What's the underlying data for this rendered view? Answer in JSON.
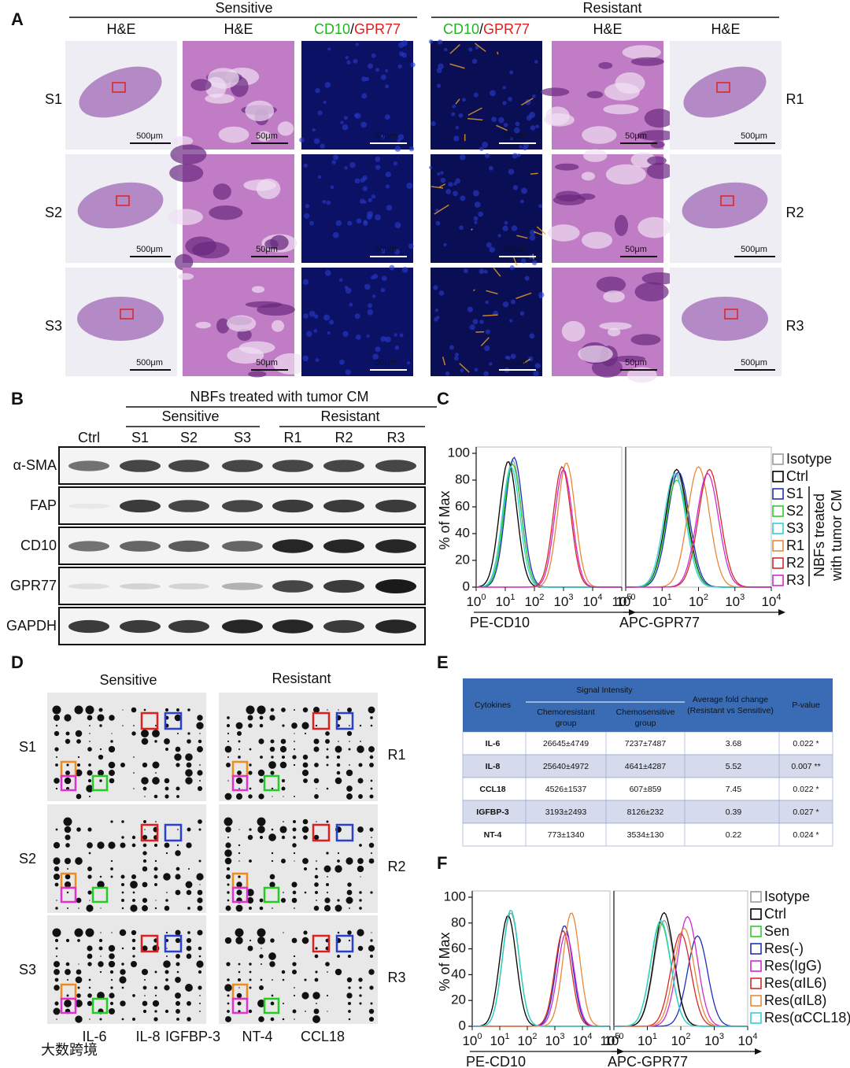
{
  "panel_a": {
    "letter": "A",
    "groups": [
      "Sensitive",
      "Resistant"
    ],
    "columns": [
      {
        "label": "H&E"
      },
      {
        "label": "H&E"
      },
      {
        "parts": [
          {
            "text": "CD10",
            "color": "#1fb51f"
          },
          {
            "text": "/",
            "color": "#111111"
          },
          {
            "text": "GPR77",
            "color": "#e01e1e"
          }
        ]
      },
      {
        "parts": [
          {
            "text": "CD10",
            "color": "#1fb51f"
          },
          {
            "text": "/",
            "color": "#111111"
          },
          {
            "text": "GPR77",
            "color": "#e01e1e"
          }
        ]
      },
      {
        "label": "H&E"
      },
      {
        "label": "H&E"
      }
    ],
    "left_rows": [
      "S1",
      "S2",
      "S3"
    ],
    "right_rows": [
      "R1",
      "R2",
      "R3"
    ],
    "scale_bars": [
      [
        "500μm",
        "50μm",
        "50μm",
        "50μm",
        "50μm",
        "500μm"
      ],
      [
        "500μm",
        "50μm",
        "50μm",
        "50μm",
        "50μm",
        "500μm"
      ],
      [
        "500μm",
        "50μm",
        "50μm",
        "50μm",
        "50μm",
        "500μm"
      ]
    ]
  },
  "panel_b": {
    "letter": "B",
    "title": "NBFs treated with tumor CM",
    "groups": [
      "Sensitive",
      "Resistant"
    ],
    "lanes": [
      "Ctrl",
      "S1",
      "S2",
      "S3",
      "R1",
      "R2",
      "R3"
    ],
    "proteins": [
      "α-SMA",
      "FAP",
      "CD10",
      "GPR77",
      "GAPDH"
    ],
    "band_intensity": [
      [
        0.6,
        0.8,
        0.8,
        0.8,
        0.8,
        0.8,
        0.8
      ],
      [
        0.05,
        0.85,
        0.8,
        0.8,
        0.85,
        0.85,
        0.85
      ],
      [
        0.6,
        0.65,
        0.7,
        0.65,
        0.95,
        0.95,
        0.95
      ],
      [
        0.1,
        0.15,
        0.15,
        0.3,
        0.8,
        0.85,
        1.0
      ],
      [
        0.85,
        0.85,
        0.85,
        0.95,
        0.95,
        0.85,
        0.95
      ]
    ]
  },
  "panel_c": {
    "letter": "C",
    "ylabel": "% of Max",
    "ylim": [
      0,
      100
    ],
    "yticks": [
      0,
      20,
      40,
      60,
      80,
      100
    ],
    "series": [
      {
        "name": "Isotype",
        "color": "#9a9a9a"
      },
      {
        "name": "Ctrl",
        "color": "#000000"
      },
      {
        "name": "S1",
        "color": "#1f2fbf"
      },
      {
        "name": "S2",
        "color": "#2ecc2e"
      },
      {
        "name": "S3",
        "color": "#2fd0d6"
      },
      {
        "name": "R1",
        "color": "#e8883a"
      },
      {
        "name": "R2",
        "color": "#d42a2a"
      },
      {
        "name": "R3",
        "color": "#d02ad0"
      }
    ],
    "group_label": [
      "NBFs treated",
      "with tumor CM"
    ],
    "plots": [
      {
        "xlabel": "PE-CD10",
        "tick_base": "10",
        "xlim": [
          0,
          5
        ],
        "xticks": [
          0,
          1,
          2,
          3,
          4,
          5
        ],
        "peaks": [
          [
            1.25,
            95
          ],
          [
            1.1,
            94
          ],
          [
            1.3,
            97
          ],
          [
            1.25,
            92
          ],
          [
            1.2,
            90
          ],
          [
            3.1,
            93
          ],
          [
            2.95,
            90
          ],
          [
            3.0,
            88
          ]
        ]
      },
      {
        "xlabel": "APC-GPR77",
        "tick_base": "10",
        "xlim": [
          0,
          4
        ],
        "xticks": [
          0,
          1,
          2,
          3,
          4
        ],
        "peaks": [
          [
            1.4,
            85
          ],
          [
            1.4,
            88
          ],
          [
            1.45,
            86
          ],
          [
            1.4,
            80
          ],
          [
            1.35,
            85
          ],
          [
            2.0,
            90
          ],
          [
            2.3,
            88
          ],
          [
            2.25,
            85
          ]
        ]
      }
    ]
  },
  "panel_d": {
    "letter": "D",
    "groups": [
      "Sensitive",
      "Resistant"
    ],
    "left_rows": [
      "S1",
      "S2",
      "S3"
    ],
    "right_rows": [
      "R1",
      "R2",
      "R3"
    ],
    "legend": [
      {
        "name": "IL-6",
        "color": "#e01e1e"
      },
      {
        "name": "IL-8",
        "color": "#2a3fd0"
      },
      {
        "name": "IGFBP-3",
        "color": "#f08a1c"
      },
      {
        "name": "NT-4",
        "color": "#e030d0"
      },
      {
        "name": "CCL18",
        "color": "#22cc22"
      }
    ]
  },
  "panel_e": {
    "letter": "E",
    "header": {
      "cytokines": "Cytokines",
      "signal": "Signal  Intensity",
      "chemoresistant": [
        "Chemoresistant",
        "group"
      ],
      "chemosensitive": [
        "Chemosensitive",
        "group"
      ],
      "fold": [
        "Average fold change",
        "(Resistant vs Sensitive)"
      ],
      "p": "P-value"
    },
    "rows": [
      [
        "IL-6",
        "26645±4749",
        "7237±7487",
        "3.68",
        "0.022 *"
      ],
      [
        "IL-8",
        "25640±4972",
        "4641±4287",
        "5.52",
        "0.007 **"
      ],
      [
        "CCL18",
        "4526±1537",
        "607±859",
        "7.45",
        "0.022 *"
      ],
      [
        "IGFBP-3",
        "3193±2493",
        "8126±232",
        "0.39",
        "0.027 *"
      ],
      [
        "NT-4",
        "773±1340",
        "3534±130",
        "0.22",
        "0.024 *"
      ]
    ],
    "row_colors": [
      "#e01e1e",
      "#e01e1e",
      "#e01e1e",
      "#22aa44",
      "#22aa44"
    ]
  },
  "panel_f": {
    "letter": "F",
    "ylabel": "% of Max",
    "ylim": [
      0,
      100
    ],
    "yticks": [
      0,
      20,
      40,
      60,
      80,
      100
    ],
    "series": [
      {
        "name": "Isotype",
        "color": "#9a9a9a"
      },
      {
        "name": "Ctrl",
        "color": "#000000"
      },
      {
        "name": "Sen",
        "color": "#2ecc2e"
      },
      {
        "name": "Res(-)",
        "color": "#1f2fbf"
      },
      {
        "name": "Res(IgG)",
        "color": "#d02ad0"
      },
      {
        "name": "Res(αIL6)",
        "color": "#d42a2a"
      },
      {
        "name": "Res(αIL8)",
        "color": "#e8883a"
      },
      {
        "name": "Res(αCCL18)",
        "color": "#2fd0d6"
      }
    ],
    "plots": [
      {
        "xlabel": "PE-CD10",
        "tick_base": "10",
        "xlim": [
          0,
          5
        ],
        "xticks": [
          0,
          1,
          2,
          3,
          4,
          5
        ],
        "peaks": [
          [
            1.4,
            88
          ],
          [
            1.3,
            86
          ],
          [
            1.4,
            90
          ],
          [
            3.35,
            78
          ],
          [
            3.4,
            72
          ],
          [
            3.3,
            74
          ],
          [
            3.6,
            88
          ],
          [
            1.4,
            90
          ]
        ]
      },
      {
        "xlabel": "APC-GPR77",
        "tick_base": "10",
        "xlim": [
          0,
          4
        ],
        "xticks": [
          0,
          1,
          2,
          3,
          4
        ],
        "peaks": [
          [
            1.5,
            82
          ],
          [
            1.5,
            88
          ],
          [
            1.4,
            80
          ],
          [
            2.5,
            70
          ],
          [
            2.2,
            85
          ],
          [
            2.0,
            72
          ],
          [
            2.1,
            76
          ],
          [
            1.4,
            82
          ]
        ]
      }
    ]
  },
  "watermark": "大数跨境"
}
